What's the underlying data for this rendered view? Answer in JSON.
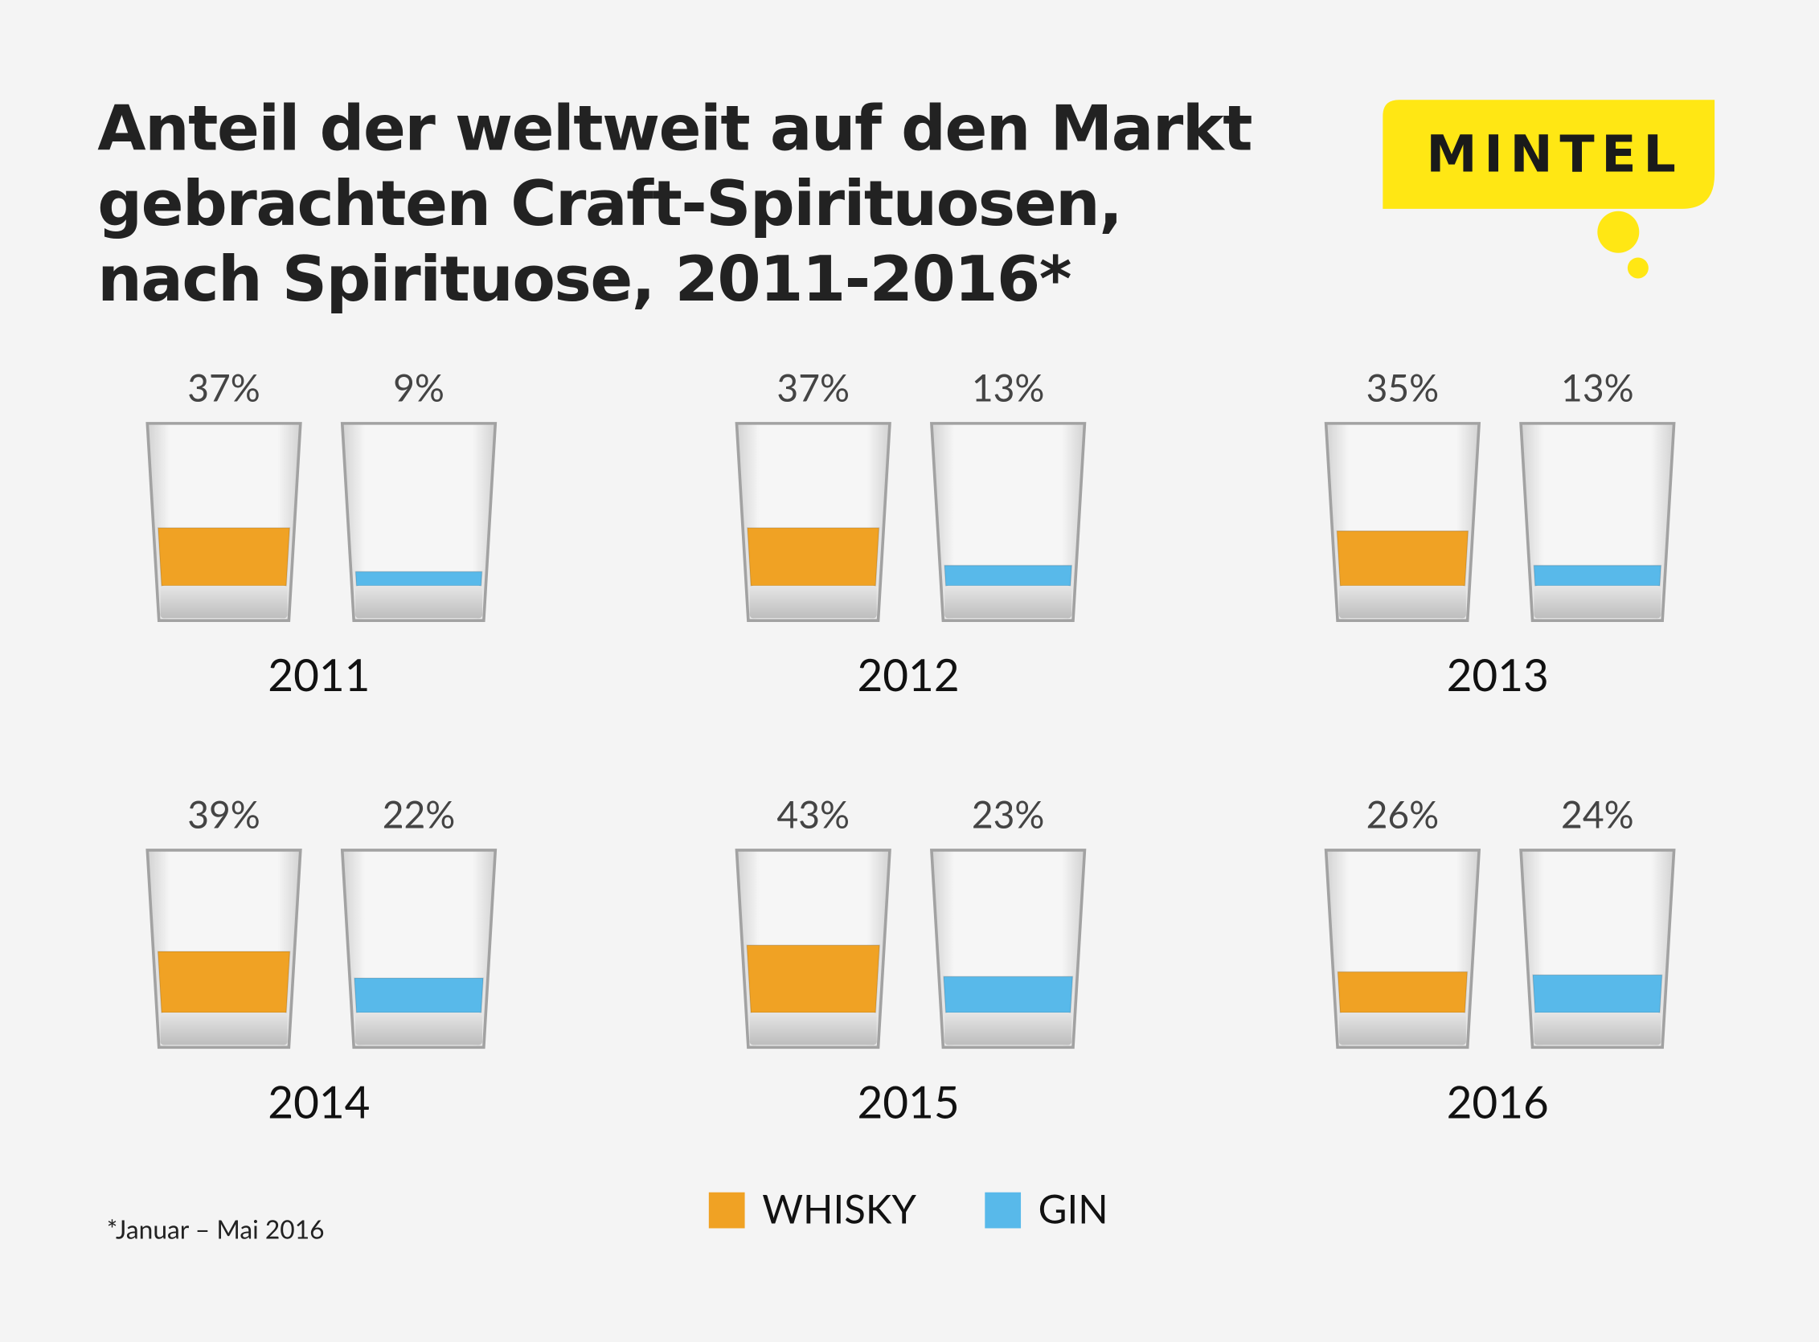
{
  "chart_data": {
    "type": "glass",
    "title": "Anteil der weltweit auf den Markt\ngebrachten Craft-Spirituosen,\nnach Spirituose, 2011-2016*",
    "logo": "MINTEL",
    "footnote": "*Januar – Mai 2016",
    "categories": [
      "2011",
      "2012",
      "2013",
      "2014",
      "2015",
      "2016"
    ],
    "series": [
      {
        "name": "WHISKY",
        "color": "#f0a224",
        "values": [
          37,
          37,
          35,
          39,
          43,
          26
        ],
        "value_labels": [
          "37%",
          "37%",
          "35%",
          "39%",
          "43%",
          "26%"
        ]
      },
      {
        "name": "GIN",
        "color": "#58b9ea",
        "values": [
          9,
          13,
          13,
          22,
          23,
          24
        ],
        "value_labels": [
          "9%",
          "13%",
          "13%",
          "22%",
          "23%",
          "24%"
        ]
      }
    ]
  }
}
